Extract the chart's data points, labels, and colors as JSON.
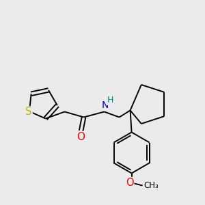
{
  "background_color": "#ebebeb",
  "atom_colors": {
    "S": "#b8b800",
    "O": "#ff0000",
    "N": "#0000cc",
    "NH_H": "#008888",
    "C": "#000000"
  },
  "figsize": [
    3.0,
    3.0
  ],
  "dpi": 100
}
